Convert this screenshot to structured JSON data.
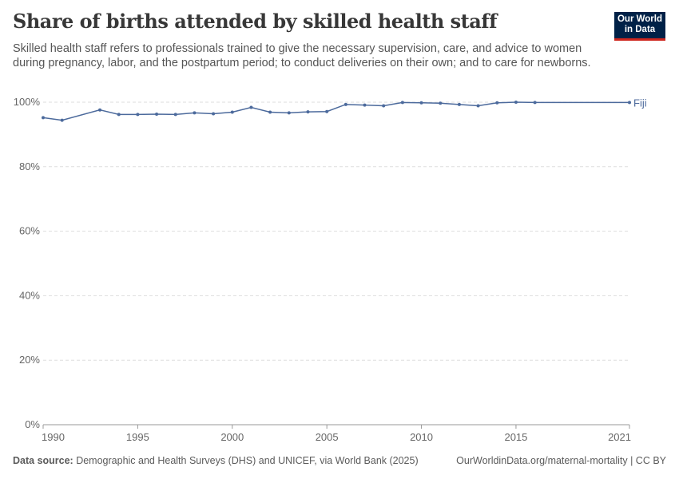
{
  "title": "Share of births attended by skilled health staff",
  "subtitle": "Skilled health staff refers to professionals trained to give the necessary supervision, care, and advice to women during pregnancy, labor, and the postpartum period; to conduct deliveries on their own; and to care for newborns.",
  "logo": {
    "line1": "Our World",
    "line2": "in Data"
  },
  "footer": {
    "source_label": "Data source:",
    "source": " Demographic and Health Surveys (DHS) and UNICEF, via World Bank (2025)",
    "link": "OurWorldinData.org/maternal-mortality | CC BY"
  },
  "chart_data": {
    "type": "line",
    "xlim": [
      1990,
      2021
    ],
    "ylim": [
      0,
      100
    ],
    "x_ticks": [
      "1990",
      "1995",
      "2000",
      "2005",
      "2010",
      "2015",
      "2021"
    ],
    "y_ticks": [
      "0%",
      "20%",
      "40%",
      "60%",
      "80%",
      "100%"
    ],
    "grid": true,
    "color": "#4c6a9c",
    "series": [
      {
        "name": "Fiji",
        "x": [
          1990,
          1991,
          1993,
          1994,
          1995,
          1996,
          1997,
          1998,
          1999,
          2000,
          2001,
          2002,
          2003,
          2004,
          2005,
          2006,
          2007,
          2008,
          2009,
          2010,
          2011,
          2012,
          2013,
          2014,
          2015,
          2016,
          2021
        ],
        "y": [
          95.2,
          94.4,
          97.6,
          96.2,
          96.2,
          96.3,
          96.2,
          96.7,
          96.4,
          96.9,
          98.4,
          96.9,
          96.7,
          97.0,
          97.1,
          99.3,
          99.1,
          98.9,
          99.9,
          99.8,
          99.7,
          99.3,
          98.9,
          99.8,
          100,
          99.9,
          99.9
        ]
      }
    ]
  }
}
